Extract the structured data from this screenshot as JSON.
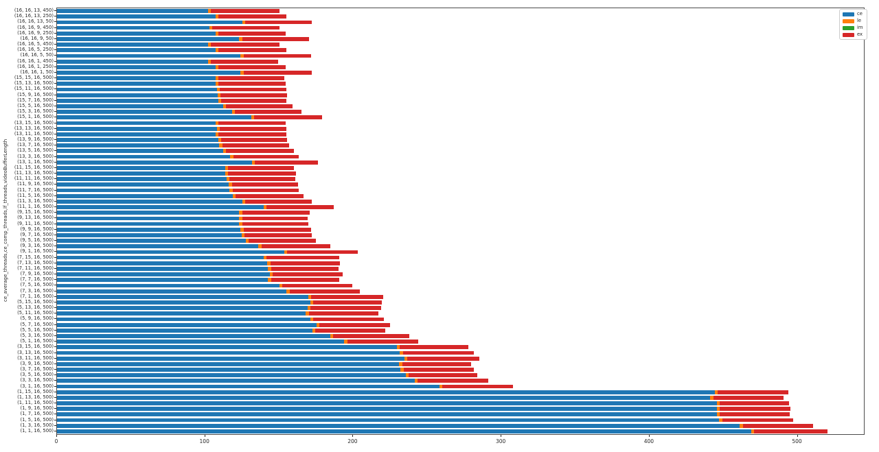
{
  "chart_data": {
    "type": "bar",
    "orientation": "horizontal",
    "stacked": true,
    "title": "",
    "xlabel": "",
    "ylabel": "ce_average_threads,ce_comp_threads,lf_threads,videoBufferLength",
    "xlim": [
      0,
      544.7
    ],
    "xticks": [
      0,
      100,
      200,
      300,
      400,
      500
    ],
    "grid": false,
    "legend_position": "upper right",
    "categories": [
      "(16, 16, 13, 450)",
      "(16, 16, 13, 250)",
      "(16, 16, 13, 50)",
      "(16, 16, 9, 450)",
      "(16, 16, 9, 250)",
      "(16, 16, 9, 50)",
      "(16, 16, 5, 450)",
      "(16, 16, 5, 250)",
      "(16, 16, 5, 50)",
      "(16, 16, 1, 450)",
      "(16, 16, 1, 250)",
      "(16, 16, 1, 50)",
      "(15, 15, 16, 500)",
      "(15, 13, 16, 500)",
      "(15, 11, 16, 500)",
      "(15, 9, 16, 500)",
      "(15, 7, 16, 500)",
      "(15, 5, 16, 500)",
      "(15, 3, 16, 500)",
      "(15, 1, 16, 500)",
      "(13, 15, 16, 500)",
      "(13, 13, 16, 500)",
      "(13, 11, 16, 500)",
      "(13, 9, 16, 500)",
      "(13, 7, 16, 500)",
      "(13, 5, 16, 500)",
      "(13, 3, 16, 500)",
      "(13, 1, 16, 500)",
      "(11, 15, 16, 500)",
      "(11, 13, 16, 500)",
      "(11, 11, 16, 500)",
      "(11, 9, 16, 500)",
      "(11, 7, 16, 500)",
      "(11, 5, 16, 500)",
      "(11, 3, 16, 500)",
      "(11, 1, 16, 500)",
      "(9, 15, 16, 500)",
      "(9, 13, 16, 500)",
      "(9, 11, 16, 500)",
      "(9, 9, 16, 500)",
      "(9, 7, 16, 500)",
      "(9, 5, 16, 500)",
      "(9, 3, 16, 500)",
      "(9, 1, 16, 500)",
      "(7, 15, 16, 500)",
      "(7, 13, 16, 500)",
      "(7, 11, 16, 500)",
      "(7, 9, 16, 500)",
      "(7, 7, 16, 500)",
      "(7, 5, 16, 500)",
      "(7, 3, 16, 500)",
      "(7, 1, 16, 500)",
      "(5, 15, 16, 500)",
      "(5, 13, 16, 500)",
      "(5, 11, 16, 500)",
      "(5, 9, 16, 500)",
      "(5, 7, 16, 500)",
      "(5, 5, 16, 500)",
      "(5, 3, 16, 500)",
      "(5, 1, 16, 500)",
      "(3, 15, 16, 500)",
      "(3, 13, 16, 500)",
      "(3, 11, 16, 500)",
      "(3, 9, 16, 500)",
      "(3, 7, 16, 500)",
      "(3, 5, 16, 500)",
      "(3, 3, 16, 500)",
      "(3, 1, 16, 500)",
      "(1, 15, 16, 500)",
      "(1, 13, 16, 500)",
      "(1, 11, 16, 500)",
      "(1, 9, 16, 500)",
      "(1, 7, 16, 500)",
      "(1, 5, 16, 500)",
      "(1, 3, 16, 500)",
      "(1, 1, 16, 500)"
    ],
    "series": [
      {
        "name": "ce",
        "color": "#1f77b4",
        "values": [
          102,
          107,
          125,
          103,
          107,
          123,
          102,
          107,
          124,
          102,
          107,
          124,
          107,
          107,
          108,
          108.5,
          109,
          112,
          118,
          131,
          107,
          108,
          107,
          109,
          109.5,
          112,
          117,
          131.5,
          113.5,
          113.5,
          114.5,
          116,
          116.5,
          118.5,
          125,
          139.5,
          123,
          123,
          123,
          124,
          124.5,
          127.5,
          136,
          153.5,
          139.5,
          142,
          142.5,
          143.5,
          142.5,
          150,
          155,
          169.5,
          171,
          169,
          168,
          171,
          175,
          172.5,
          184.5,
          194,
          229.5,
          231.5,
          234.5,
          231,
          232,
          235.5,
          241.5,
          258,
          444,
          441,
          445.5,
          445.5,
          445.5,
          447,
          461,
          468.5
        ]
      },
      {
        "name": "le",
        "color": "#ff7f0e",
        "values": [
          2,
          2,
          2,
          2,
          2,
          2,
          2,
          2,
          2,
          2,
          2,
          2,
          2,
          2,
          2,
          2,
          2,
          2,
          2,
          2,
          2,
          2,
          2,
          2,
          2,
          2,
          2,
          2,
          2,
          2,
          2,
          2,
          2,
          2,
          2,
          2,
          2,
          2,
          2,
          2,
          2,
          2,
          2,
          2,
          2,
          2,
          2,
          2,
          2,
          2,
          2,
          2,
          2,
          2,
          2,
          2,
          2,
          2,
          2,
          2,
          2,
          2,
          2,
          2,
          2,
          2,
          2,
          2,
          2,
          2,
          2,
          2,
          2,
          2,
          2,
          2
        ]
      },
      {
        "name": "im",
        "color": "#2ca02c",
        "values": [
          0,
          0,
          0,
          0,
          0,
          0,
          0,
          0,
          0,
          0,
          0,
          0,
          0,
          0,
          0,
          0,
          0,
          0,
          0,
          0,
          0,
          0,
          0,
          0,
          0,
          0,
          0,
          0,
          0,
          0,
          0,
          0,
          0,
          0,
          0,
          0,
          0,
          0,
          0,
          0,
          0,
          0,
          0,
          0,
          0,
          0,
          0,
          0,
          0,
          0,
          0,
          0,
          0,
          0,
          0,
          0,
          0,
          0,
          0,
          0,
          0,
          0,
          0,
          0,
          0,
          0,
          0,
          0,
          0,
          0,
          0,
          0,
          0,
          0,
          0,
          0
        ]
      },
      {
        "name": "ex",
        "color": "#d62728",
        "values": [
          46,
          46,
          45,
          45,
          45.5,
          45,
          46,
          46,
          45.5,
          45.5,
          45.5,
          46,
          44.5,
          45.5,
          45,
          45,
          44,
          45,
          45,
          46,
          45.5,
          45,
          46,
          44.5,
          45,
          46,
          44,
          42.5,
          44.5,
          46,
          44.5,
          44.5,
          44.5,
          46,
          45,
          45.5,
          45.5,
          44,
          44.5,
          45.5,
          45.5,
          45.5,
          46.5,
          47.5,
          49,
          47,
          45.5,
          47.5,
          46,
          47.5,
          47.5,
          48.5,
          46.5,
          48,
          47,
          47.5,
          48,
          47,
          51.5,
          48,
          46,
          48,
          48.5,
          46.5,
          47.5,
          46,
          47.5,
          48,
          47.5,
          47.5,
          46.5,
          47.5,
          47,
          48,
          47.5,
          49.5
        ]
      }
    ]
  }
}
